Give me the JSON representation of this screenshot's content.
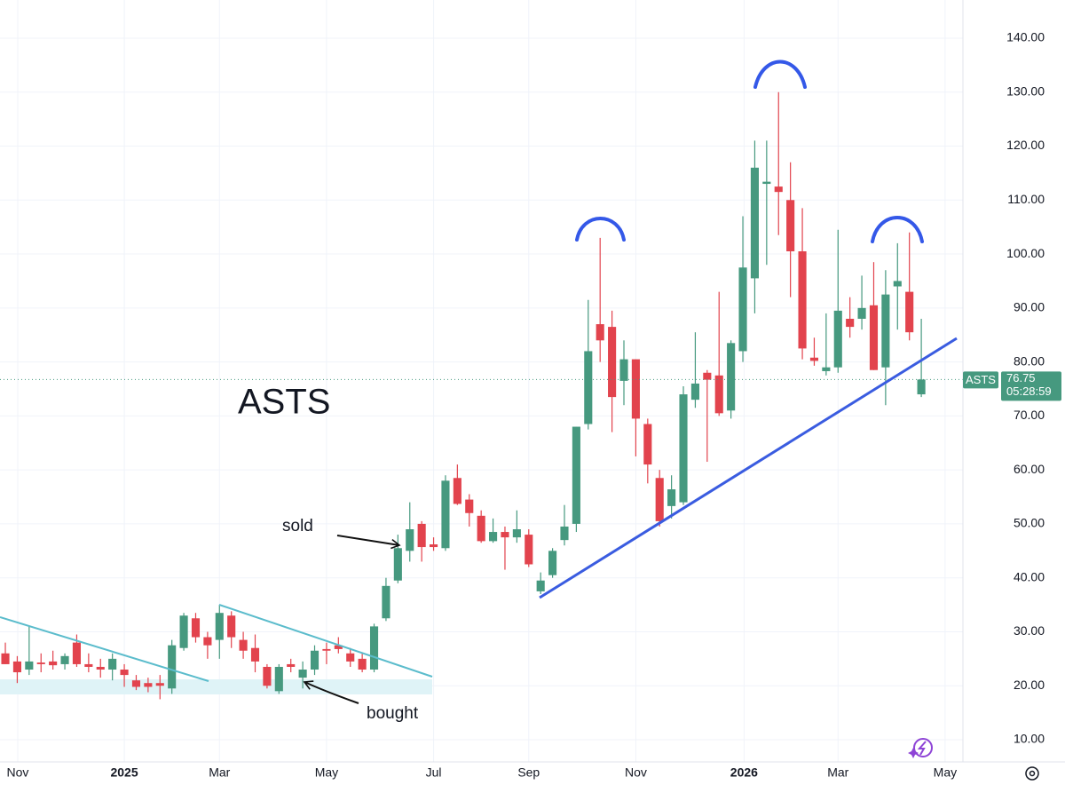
{
  "chart_data": {
    "type": "candlestick",
    "title": "ASTS",
    "symbol": "ASTS",
    "countdown": "05:28:59",
    "annotations": [
      "sold",
      "bought"
    ],
    "up_color": "#46997f",
    "down_color": "#e2434d",
    "grid": true,
    "open": [
      26,
      24.5,
      23,
      24.3,
      24.5,
      24,
      28,
      24,
      23.5,
      23,
      23,
      21,
      20.5,
      20.5,
      19.5,
      27,
      32.5,
      29,
      28.5,
      33,
      28.5,
      27,
      23.5,
      19,
      24,
      21.5,
      23,
      26.8,
      27.5,
      26,
      25,
      23,
      32.5,
      39.5,
      45,
      50,
      46.2,
      45.5,
      58.5,
      54.5,
      51.5,
      46.8,
      48.5,
      47.5,
      48,
      37.5,
      40.5,
      47,
      50,
      68.5,
      87,
      86.5,
      76.5,
      80.5,
      68.5,
      58.5,
      53.3,
      54,
      73,
      78,
      77.5,
      71,
      82,
      95.5,
      113,
      112.5,
      110,
      100.5,
      80.8,
      78.3,
      79,
      88,
      88,
      90.5,
      79,
      94,
      93,
      74
    ],
    "high": [
      28,
      25.5,
      31,
      26,
      26.5,
      26,
      29.5,
      26,
      25,
      26,
      24,
      22,
      21.5,
      22,
      28.5,
      33.5,
      33.5,
      30,
      35,
      33.8,
      30,
      29.5,
      24,
      24,
      25,
      24.5,
      27.5,
      28,
      29,
      27,
      26,
      31.5,
      40,
      48,
      54,
      50.5,
      47.5,
      59,
      61,
      55.5,
      52.5,
      51,
      49.5,
      52.5,
      49,
      41,
      45.5,
      53.5,
      68,
      91.5,
      103,
      89.5,
      84,
      80.5,
      69.5,
      60,
      59,
      75.5,
      85.5,
      78.5,
      93,
      84,
      107,
      121,
      121,
      130,
      117,
      108.5,
      84.5,
      89,
      104.5,
      92,
      96,
      98.5,
      97,
      102,
      104,
      88
    ],
    "low": [
      24,
      20.5,
      22,
      22.5,
      23,
      23,
      23.5,
      22.5,
      21.5,
      21,
      19.8,
      19.2,
      18.8,
      17.5,
      18.5,
      26.5,
      28,
      25,
      25,
      27,
      25,
      22.5,
      19.5,
      18.5,
      22.5,
      19.5,
      22,
      24,
      26,
      23.5,
      22.5,
      22.5,
      32,
      39,
      43,
      43,
      45,
      45,
      53.5,
      49.5,
      46.5,
      46.5,
      41.5,
      46.5,
      42,
      37,
      40,
      46,
      48.5,
      67.5,
      80,
      67,
      72,
      62.5,
      57.5,
      49.5,
      51,
      53.5,
      71.5,
      61.5,
      70,
      69.5,
      80,
      89,
      98,
      103.5,
      92,
      80.5,
      79.3,
      77.5,
      78,
      84.5,
      86,
      78.5,
      72,
      86,
      84,
      73.5
    ],
    "close": [
      24,
      22.5,
      24.5,
      24,
      23.8,
      25.5,
      24,
      23.5,
      23,
      25,
      22,
      19.8,
      19.8,
      20,
      27.5,
      33,
      29,
      27.5,
      33.5,
      29,
      26.5,
      24.5,
      20,
      23.5,
      23.5,
      23,
      26.5,
      26.5,
      26.8,
      24.5,
      23,
      31,
      38.5,
      45.5,
      49,
      45.7,
      45.7,
      58,
      53.7,
      52,
      46.8,
      48.5,
      47.5,
      49,
      42.5,
      39.5,
      45,
      49.5,
      68,
      82,
      84,
      73.5,
      80.5,
      69.5,
      61,
      50.5,
      56.4,
      74,
      76,
      76.7,
      70.5,
      83.5,
      97.5,
      116,
      113.4,
      111.5,
      100.5,
      82.5,
      80.2,
      79,
      89.5,
      86.5,
      90,
      78.5,
      92.5,
      95,
      85.5,
      76.75
    ],
    "xlim": [
      -0.45,
      80.5
    ],
    "xticks": [
      {
        "value": 1.04,
        "label": "Nov"
      },
      {
        "value": 10,
        "label": "2025"
      },
      {
        "value": 18,
        "label": "Mar"
      },
      {
        "value": 27,
        "label": "May"
      },
      {
        "value": 36,
        "label": "Jul"
      },
      {
        "value": 44,
        "label": "Sep"
      },
      {
        "value": 53,
        "label": "Nov"
      },
      {
        "value": 62.1,
        "label": "2026"
      },
      {
        "value": 70,
        "label": "Mar"
      },
      {
        "value": 79,
        "label": "May"
      }
    ],
    "ylim": [
      5.89,
      147.07
    ],
    "yticks": [
      {
        "value": 10,
        "label": "10.00"
      },
      {
        "value": 20,
        "label": "20.00"
      },
      {
        "value": 30,
        "label": "30.00"
      },
      {
        "value": 40,
        "label": "40.00"
      },
      {
        "value": 50,
        "label": "50.00"
      },
      {
        "value": 60,
        "label": "60.00"
      },
      {
        "value": 70,
        "label": "70.00"
      },
      {
        "value": 80,
        "label": "80.00"
      },
      {
        "value": 90,
        "label": "90.00"
      },
      {
        "value": 100,
        "label": "100.00"
      },
      {
        "value": 110,
        "label": "110.00"
      },
      {
        "value": 120,
        "label": "120.00"
      },
      {
        "value": 130,
        "label": "130.00"
      },
      {
        "value": 140,
        "label": "140.00"
      }
    ]
  }
}
